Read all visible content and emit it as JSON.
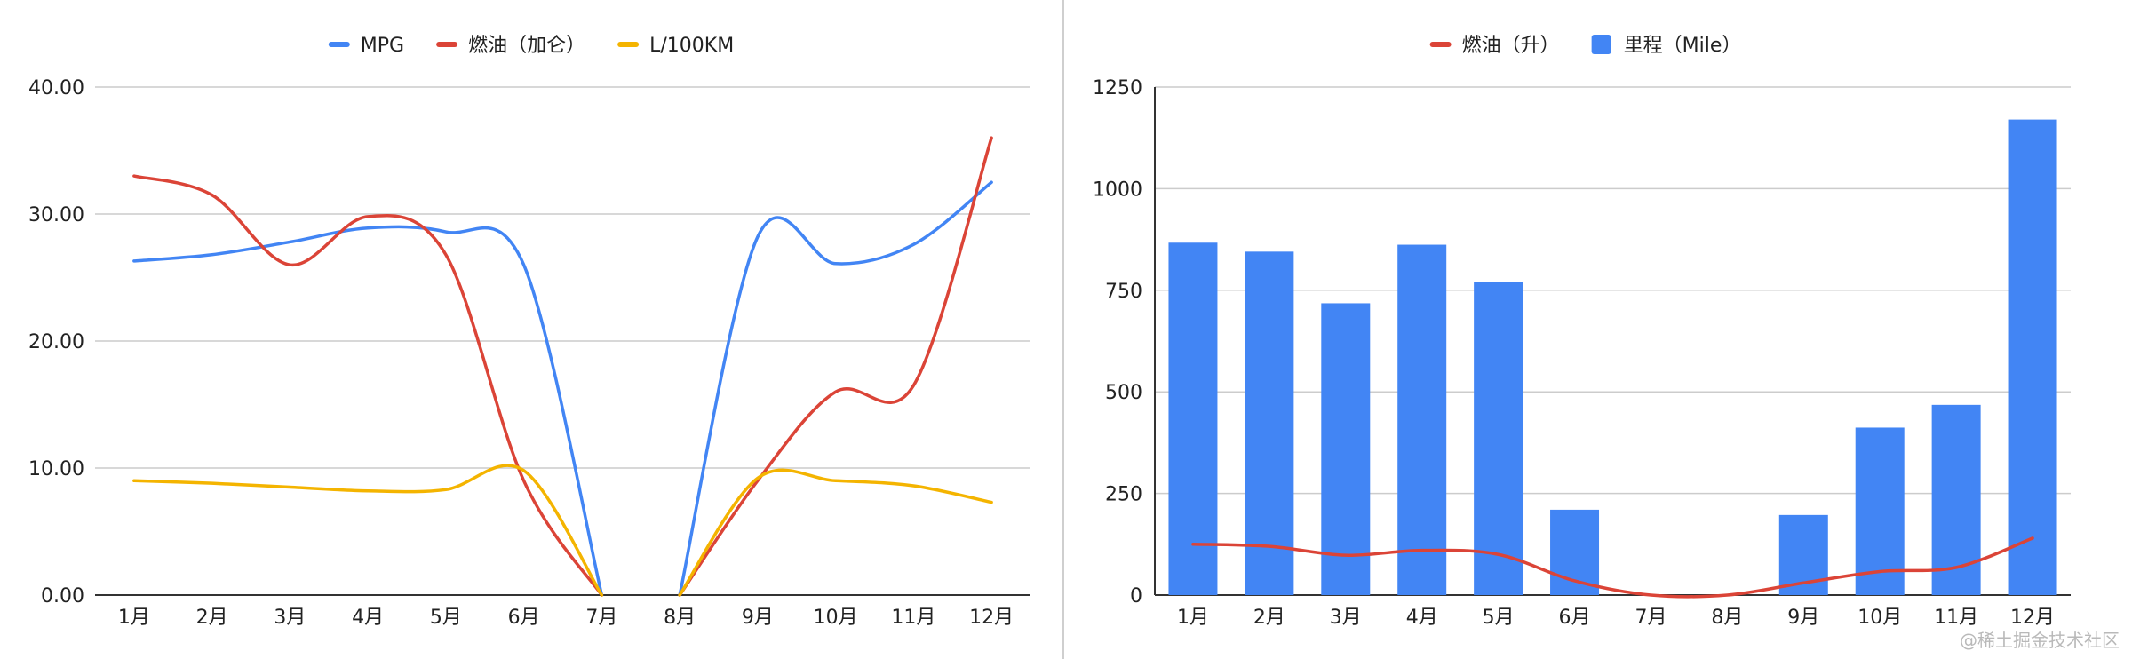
{
  "charts": {
    "line": {
      "type": "line",
      "categories": [
        "1月",
        "2月",
        "3月",
        "4月",
        "5月",
        "6月",
        "7月",
        "8月",
        "9月",
        "10月",
        "11月",
        "12月"
      ],
      "series": [
        {
          "name": "MPG",
          "color": "#4285f4",
          "values": [
            26.3,
            26.8,
            27.8,
            28.9,
            28.6,
            26.0,
            0,
            0,
            28.2,
            26.1,
            27.6,
            32.5
          ]
        },
        {
          "name": "燃油（加仑）",
          "color": "#db4437",
          "values": [
            33.0,
            31.5,
            26.0,
            29.8,
            26.8,
            9.0,
            0,
            0,
            9.0,
            16.0,
            16.5,
            36.0
          ]
        },
        {
          "name": "L/100KM",
          "color": "#f4b400",
          "values": [
            9.0,
            8.8,
            8.5,
            8.2,
            8.3,
            9.8,
            0,
            0,
            9.2,
            9.0,
            8.6,
            7.3
          ]
        }
      ],
      "ylim": [
        0,
        40
      ],
      "yticks": [
        "0.00",
        "10.00",
        "20.00",
        "30.00",
        "40.00"
      ],
      "grid": true,
      "legend": "top"
    },
    "combo": {
      "type": "bar",
      "categories": [
        "1月",
        "2月",
        "3月",
        "4月",
        "5月",
        "6月",
        "7月",
        "8月",
        "9月",
        "10月",
        "11月",
        "12月"
      ],
      "series": [
        {
          "name": "燃油（升）",
          "kind": "line",
          "color": "#db4437",
          "values": [
            125,
            120,
            98,
            110,
            100,
            35,
            0,
            0,
            30,
            58,
            68,
            140
          ]
        },
        {
          "name": "里程（Mile）",
          "kind": "bar",
          "color": "#4285f4",
          "values": [
            867,
            845,
            718,
            862,
            770,
            210,
            0,
            0,
            197,
            412,
            468,
            1170
          ]
        }
      ],
      "ylim": [
        0,
        1250
      ],
      "yticks": [
        "0",
        "250",
        "500",
        "750",
        "1000",
        "1250"
      ],
      "grid": true,
      "legend": "top"
    }
  },
  "watermark": "@稀土掘金技术社区"
}
